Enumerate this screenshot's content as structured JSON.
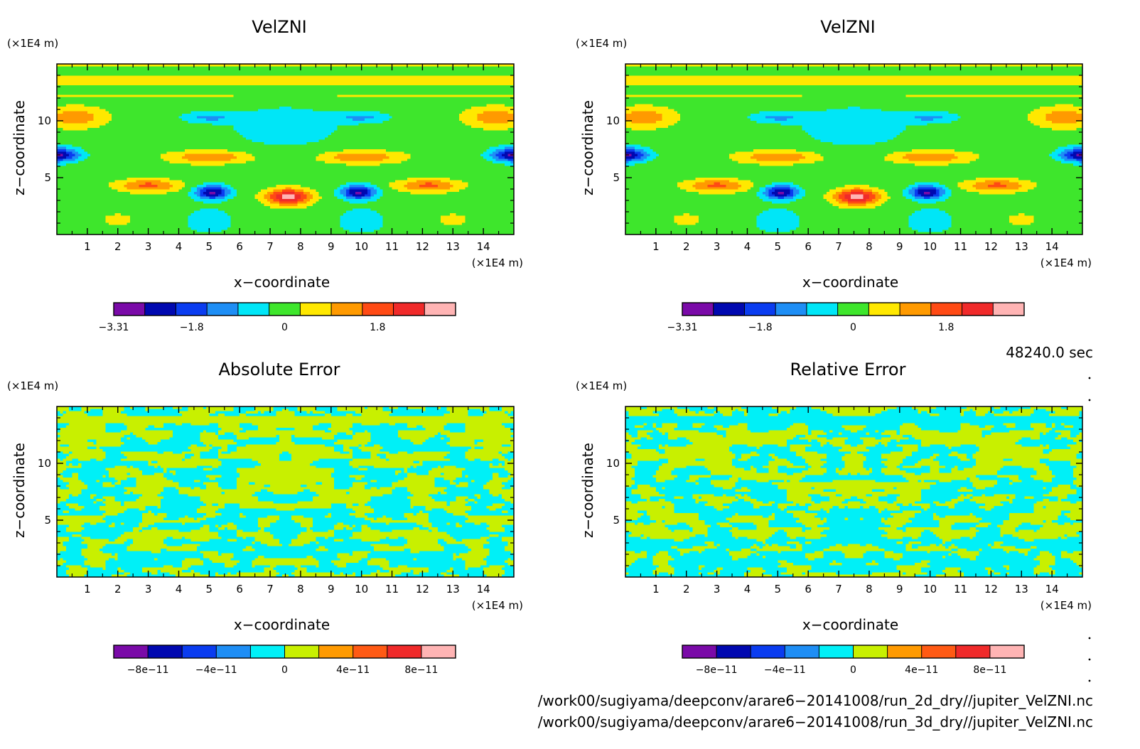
{
  "chart_data": [
    {
      "type": "heatmap",
      "title": "VelZNI",
      "xlabel": "x−coordinate",
      "ylabel": "z−coordinate",
      "x_unit": "(×1E4 m)",
      "y_unit": "(×1E4 m)",
      "xlim": [
        0,
        15
      ],
      "ylim": [
        0,
        15
      ],
      "xticks": [
        1,
        2,
        3,
        4,
        5,
        6,
        7,
        8,
        9,
        10,
        11,
        12,
        13,
        14
      ],
      "yticks": [
        5,
        10
      ],
      "field": "velzni",
      "colorbar": {
        "colors": [
          "#7a0aa8",
          "#0008b0",
          "#0a3cf0",
          "#1e8ef5",
          "#00e6f7",
          "#3ee62c",
          "#ffe800",
          "#ff9a00",
          "#ff4a14",
          "#f02a2a",
          "#ffb4b4"
        ],
        "tick_labels": [
          "−3.31",
          "−1.8",
          "0",
          "1.8"
        ],
        "min": -3.31,
        "max": 3.31
      }
    },
    {
      "type": "heatmap",
      "title": "VelZNI",
      "xlabel": "x−coordinate",
      "ylabel": "z−coordinate",
      "x_unit": "(×1E4 m)",
      "y_unit": "(×1E4 m)",
      "xlim": [
        0,
        15
      ],
      "ylim": [
        0,
        15
      ],
      "xticks": [
        1,
        2,
        3,
        4,
        5,
        6,
        7,
        8,
        9,
        10,
        11,
        12,
        13,
        14
      ],
      "yticks": [
        5,
        10
      ],
      "field": "velzni",
      "colorbar": {
        "colors": [
          "#7a0aa8",
          "#0008b0",
          "#0a3cf0",
          "#1e8ef5",
          "#00e6f7",
          "#3ee62c",
          "#ffe800",
          "#ff9a00",
          "#ff4a14",
          "#f02a2a",
          "#ffb4b4"
        ],
        "tick_labels": [
          "−3.31",
          "−1.8",
          "0",
          "1.8"
        ],
        "min": -3.31,
        "max": 3.31
      }
    },
    {
      "type": "heatmap",
      "title": "Absolute Error",
      "xlabel": "x−coordinate",
      "ylabel": "z−coordinate",
      "x_unit": "(×1E4 m)",
      "y_unit": "(×1E4 m)",
      "xlim": [
        0,
        15
      ],
      "ylim": [
        0,
        15
      ],
      "xticks": [
        1,
        2,
        3,
        4,
        5,
        6,
        7,
        8,
        9,
        10,
        11,
        12,
        13,
        14
      ],
      "yticks": [
        5,
        10
      ],
      "field": "noise",
      "seed": 7,
      "colorbar": {
        "colors": [
          "#7a0aa8",
          "#0008b0",
          "#0a3cf0",
          "#1e8ef5",
          "#00f0f7",
          "#c8f000",
          "#ff9a00",
          "#ff5a14",
          "#f02a2a",
          "#ffb4b4"
        ],
        "tick_labels": [
          "−8e−11",
          "−4e−11",
          "0",
          "4e−11",
          "8e−11"
        ],
        "min": -1e-10,
        "max": 1e-10
      }
    },
    {
      "type": "heatmap",
      "title": "Relative Error",
      "xlabel": "x−coordinate",
      "ylabel": "z−coordinate",
      "x_unit": "(×1E4 m)",
      "y_unit": "(×1E4 m)",
      "xlim": [
        0,
        15
      ],
      "ylim": [
        0,
        15
      ],
      "xticks": [
        1,
        2,
        3,
        4,
        5,
        6,
        7,
        8,
        9,
        10,
        11,
        12,
        13,
        14
      ],
      "yticks": [
        5,
        10
      ],
      "field": "noise",
      "seed": 19,
      "colorbar": {
        "colors": [
          "#7a0aa8",
          "#0008b0",
          "#0a3cf0",
          "#1e8ef5",
          "#00f0f7",
          "#c8f000",
          "#ff9a00",
          "#ff5a14",
          "#f02a2a",
          "#ffb4b4"
        ],
        "tick_labels": [
          "−8e−11",
          "−4e−11",
          "0",
          "4e−11",
          "8e−11"
        ],
        "min": -1e-10,
        "max": 1e-10
      }
    }
  ],
  "time_label": "48240.0 sec",
  "footer_lines": [
    "/work00/sugiyama/deepconv/arare6−20141008/run_2d_dry//jupiter_VelZNI.nc",
    "/work00/sugiyama/deepconv/arare6−20141008/run_3d_dry//jupiter_VelZNI.nc"
  ]
}
